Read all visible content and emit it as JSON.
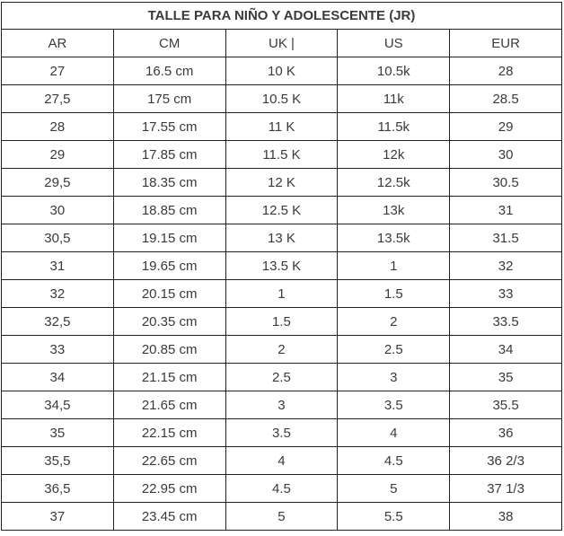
{
  "title": "TALLE PARA NIÑO Y ADOLESCENTE (JR)",
  "headers": [
    "AR",
    "CM",
    "UK |",
    "US",
    "EUR"
  ],
  "rows": [
    [
      "27",
      "16.5 cm",
      "10 K",
      "10.5k",
      "28"
    ],
    [
      "27,5",
      "175 cm",
      "10.5 K",
      "11k",
      "28.5"
    ],
    [
      "28",
      "17.55 cm",
      "11 K",
      "11.5k",
      "29"
    ],
    [
      "29",
      "17.85 cm",
      "11.5 K",
      "12k",
      "30"
    ],
    [
      "29,5",
      "18.35 cm",
      "12 K",
      "12.5k",
      "30.5"
    ],
    [
      "30",
      "18.85 cm",
      "12.5 K",
      "13k",
      "31"
    ],
    [
      "30,5",
      "19.15 cm",
      "13 K",
      "13.5k",
      "31.5"
    ],
    [
      "31",
      "19.65 cm",
      "13.5 K",
      "1",
      "32"
    ],
    [
      "32",
      "20.15 cm",
      "1",
      "1.5",
      "33"
    ],
    [
      "32,5",
      "20.35 cm",
      "1.5",
      "2",
      "33.5"
    ],
    [
      "33",
      "20.85 cm",
      "2",
      "2.5",
      "34"
    ],
    [
      "34",
      "21.15 cm",
      "2.5",
      "3",
      "35"
    ],
    [
      "34,5",
      "21.65 cm",
      "3",
      "3.5",
      "35.5"
    ],
    [
      "35",
      "22.15 cm",
      "3.5",
      "4",
      "36"
    ],
    [
      "35,5",
      "22.65 cm",
      "4",
      "4.5",
      "36 2/3"
    ],
    [
      "36,5",
      "22.95 cm",
      "4.5",
      "5",
      "37 1/3"
    ],
    [
      "37",
      "23.45 cm",
      "5",
      "5.5",
      "38"
    ]
  ]
}
